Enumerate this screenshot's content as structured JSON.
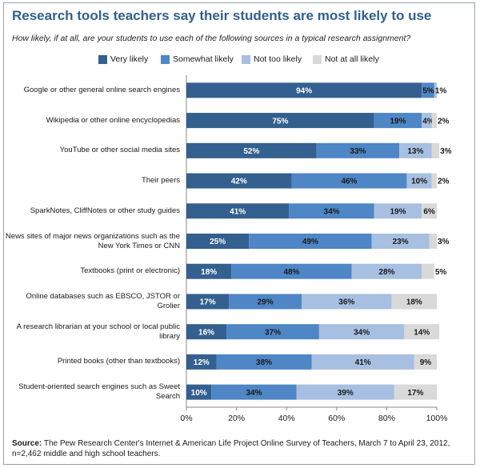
{
  "chart_data": {
    "type": "bar",
    "stacked": true,
    "orientation": "horizontal",
    "title": "Research tools teachers say their students are most likely to use",
    "subtitle": "How likely, if at all, are your students to use each of the following sources in a typical research assignment?",
    "categories": [
      "Google or other general online search engines",
      "Wikipedia or other online encyclopedias",
      "YouTube or other social media sites",
      "Their peers",
      "SparkNotes, CliffNotes or other study guides",
      "News sites of major news organizations such as the New York Times or CNN",
      "Textbooks (print or electronic)",
      "Online databases such as EBSCO, JSTOR or Grolier",
      "A research librarian at your school or local public library",
      "Printed books (other than textbooks)",
      "Student-oriented search engines such as Sweet Search"
    ],
    "series": [
      {
        "name": "Very likely",
        "color": "#33608f",
        "label_color": "#ffffff",
        "values": [
          94,
          75,
          52,
          42,
          41,
          25,
          18,
          17,
          16,
          12,
          10
        ]
      },
      {
        "name": "Somewhat likely",
        "color": "#4e86c6",
        "label_color": "#1a1a1a",
        "values": [
          5,
          19,
          33,
          46,
          34,
          49,
          48,
          29,
          37,
          38,
          34
        ]
      },
      {
        "name": "Not too likely",
        "color": "#a7bfe0",
        "label_color": "#1a1a1a",
        "values": [
          1,
          4,
          13,
          10,
          19,
          23,
          28,
          36,
          34,
          41,
          39
        ]
      },
      {
        "name": "Not at all likely",
        "color": "#d9d9d9",
        "label_color": "#1a1a1a",
        "values": [
          0,
          2,
          3,
          2,
          6,
          3,
          5,
          18,
          14,
          9,
          17
        ]
      }
    ],
    "data_labels": [
      [
        "94%",
        "5%",
        "1%",
        ""
      ],
      [
        "75%",
        "19%",
        "4%",
        "2%"
      ],
      [
        "52%",
        "33%",
        "13%",
        "3%"
      ],
      [
        "42%",
        "46%",
        "10%",
        "2%"
      ],
      [
        "41%",
        "34%",
        "19%",
        "6%"
      ],
      [
        "25%",
        "49%",
        "23%",
        "3%"
      ],
      [
        "18%",
        "48%",
        "28%",
        "5%"
      ],
      [
        "17%",
        "29%",
        "36%",
        "18%"
      ],
      [
        "16%",
        "37%",
        "34%",
        "14%"
      ],
      [
        "12%",
        "38%",
        "41%",
        "9%"
      ],
      [
        "10%",
        "34%",
        "39%",
        "17%"
      ]
    ],
    "xlim": [
      0,
      100
    ],
    "xticks": [
      "0%",
      "20%",
      "40%",
      "60%",
      "80%",
      "100%"
    ],
    "legend_position": "top"
  },
  "source": {
    "label": "Source:",
    "text": "The Pew Research Center's Internet & American Life Project Online Survey of Teachers, March 7 to April 23, 2012, n=2,462 middle and high school teachers."
  }
}
